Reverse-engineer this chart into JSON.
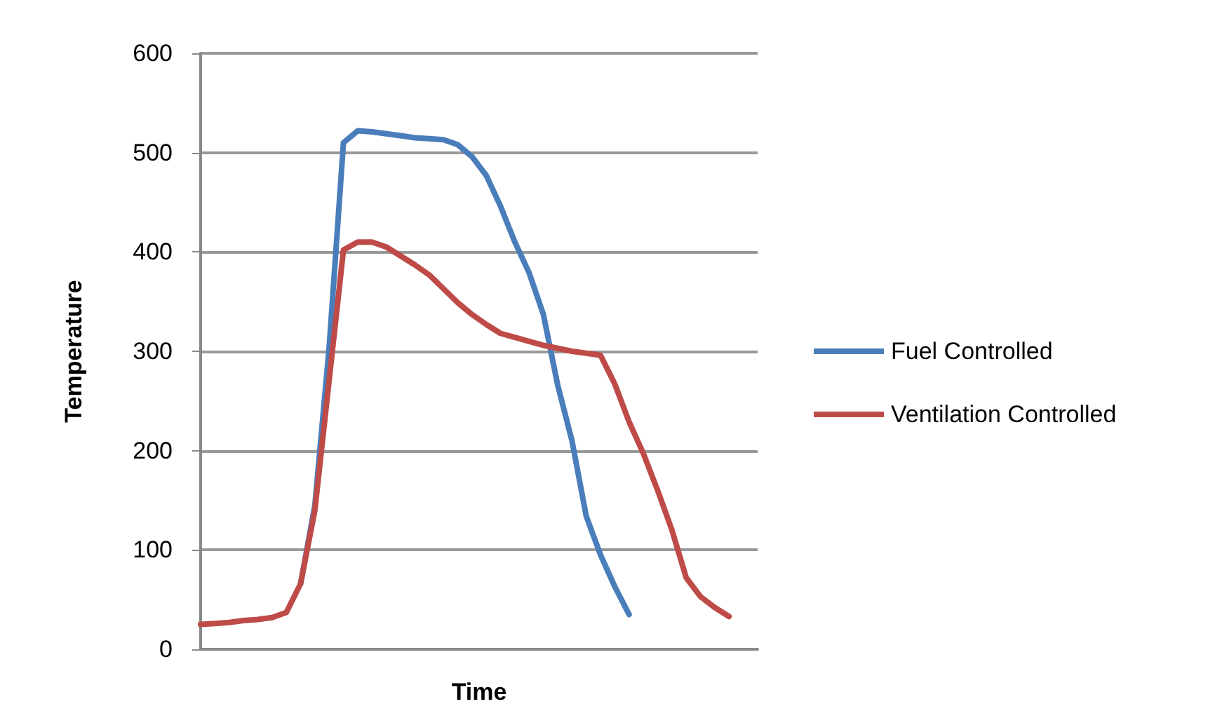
{
  "chart_data": {
    "type": "line",
    "xlabel": "Time",
    "ylabel": "Temperature",
    "categories": [
      null,
      null,
      null,
      null,
      null,
      null,
      null,
      null,
      null,
      null,
      null,
      null,
      null,
      null,
      null,
      null,
      null,
      null,
      null,
      null,
      null,
      null,
      null,
      null,
      null,
      null,
      null,
      null,
      null,
      null,
      null,
      null,
      null,
      null,
      null,
      null,
      null,
      null,
      null,
      null
    ],
    "series": [
      {
        "name": "Fuel Controlled",
        "color": "#4a7ebb",
        "values": [
          null,
          null,
          null,
          null,
          null,
          null,
          null,
          66,
          145,
          304,
          510,
          522,
          521,
          519,
          517,
          515,
          514,
          513,
          508,
          496,
          477,
          446,
          410,
          379,
          337,
          266,
          210,
          134,
          95,
          63,
          35,
          null,
          null,
          null,
          null,
          null,
          null,
          null,
          null,
          null
        ]
      },
      {
        "name": "Ventilation Controlled",
        "color": "#be4b48",
        "values": [
          25,
          26,
          27,
          29,
          30,
          32,
          37,
          66,
          140,
          271,
          402,
          410,
          410,
          405,
          396,
          387,
          377,
          363,
          349,
          337,
          327,
          318,
          314,
          310,
          306,
          303,
          300,
          298,
          296,
          267,
          229,
          197,
          160,
          120,
          72,
          53,
          42,
          33,
          null,
          null
        ]
      }
    ],
    "ylim": [
      0,
      600
    ],
    "yticks": [
      0,
      100,
      200,
      300,
      400,
      500,
      600
    ],
    "grid": "y",
    "legend": "right",
    "marker": "none",
    "line_style": "solid"
  }
}
